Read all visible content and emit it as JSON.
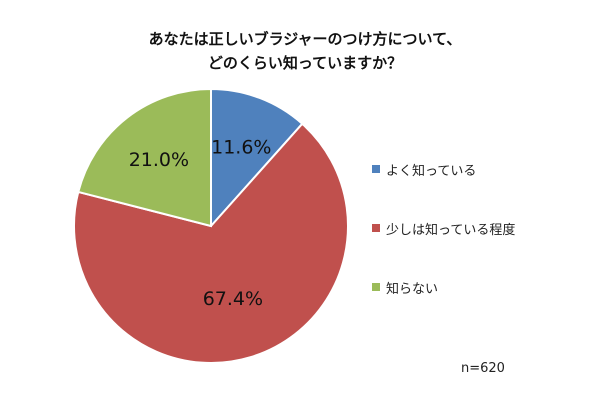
{
  "chart_data": {
    "type": "pie",
    "title_lines": [
      "あなたは正しいブラジャーのつけ方について、",
      "どのくらい知っていますか？"
    ],
    "categories": [
      "よく知っている",
      "少しは知っている程度",
      "知らない"
    ],
    "values": [
      11.6,
      67.4,
      21.0
    ],
    "data_labels": [
      "11.6%",
      "67.4%",
      "21.0%"
    ],
    "colors": [
      "#4f81bd",
      "#c0504d",
      "#9bbb59"
    ],
    "start_angle_deg": 0,
    "direction": "clockwise",
    "legend_position": "right",
    "note": "n=620"
  }
}
